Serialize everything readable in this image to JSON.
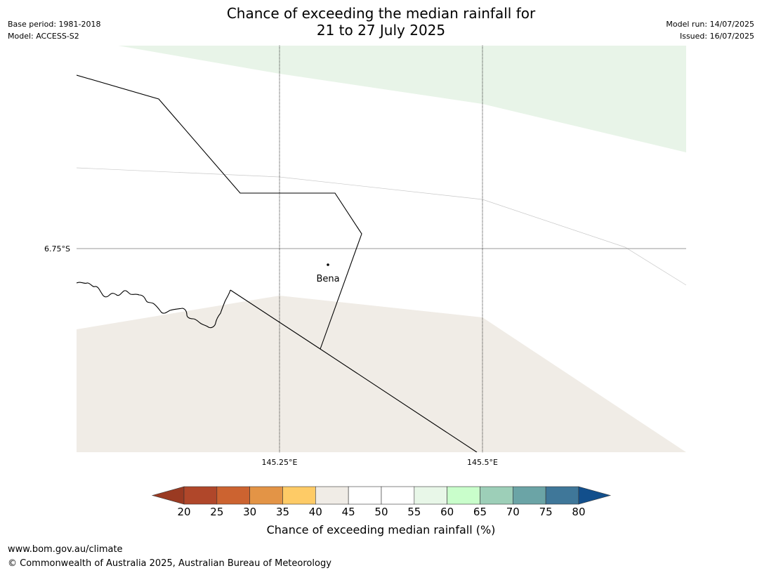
{
  "title": {
    "line1": "Chance of exceeding the median rainfall for",
    "line2": "21 to 27 July 2025"
  },
  "meta_left": {
    "base_period": "Base period: 1981-2018",
    "model": "Model: ACCESS-S2"
  },
  "meta_right": {
    "model_run": "Model run: 14/07/2025",
    "issued": "Issued: 16/07/2025"
  },
  "map": {
    "place_label": "Bena",
    "lat_labels": [
      "6.75°S"
    ],
    "lon_labels": [
      "145.25°E",
      "145.5°E"
    ],
    "region_colors": {
      "north_band": "#e8f4e8",
      "south_band": "#f0ece6"
    }
  },
  "colorbar": {
    "title": "Chance of exceeding median rainfall (%)",
    "ticks": [
      "20",
      "25",
      "30",
      "35",
      "40",
      "45",
      "50",
      "55",
      "60",
      "65",
      "70",
      "75",
      "80"
    ],
    "under_color": "#9a3a22",
    "over_color": "#124f8c",
    "colors": [
      "#b0472a",
      "#cc6330",
      "#e39446",
      "#fecb66",
      "#f0ece6",
      "#ffffff",
      "#ffffff",
      "#e8f7e8",
      "#c9fecb",
      "#9dcfb8",
      "#6ba4a6",
      "#3f7799"
    ]
  },
  "footer": {
    "url": "www.bom.gov.au/climate",
    "copyright": "© Commonwealth of Australia 2025, Australian Bureau of Meteorology"
  }
}
